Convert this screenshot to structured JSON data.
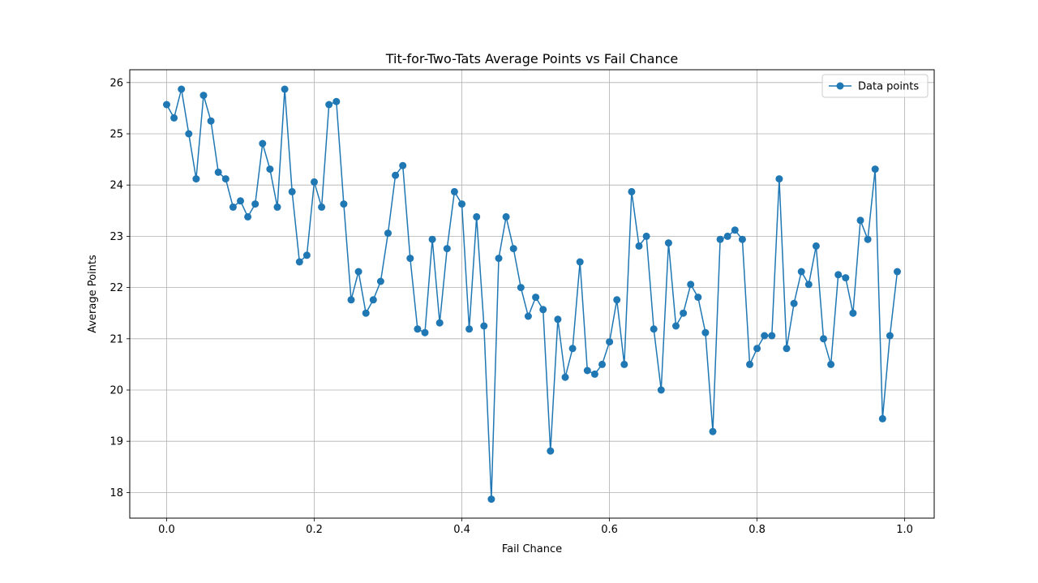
{
  "chart_data": {
    "type": "line",
    "title": "Tit-for-Two-Tats Average Points vs Fail Chance",
    "xlabel": "Fail Chance",
    "ylabel": "Average Points",
    "xlim": [
      -0.05,
      1.04
    ],
    "ylim": [
      17.5,
      26.25
    ],
    "xticks": [
      0.0,
      0.2,
      0.4,
      0.6,
      0.8,
      1.0
    ],
    "xtick_labels": [
      "0.0",
      "0.2",
      "0.4",
      "0.6",
      "0.8",
      "1.0"
    ],
    "yticks": [
      18,
      19,
      20,
      21,
      22,
      23,
      24,
      25,
      26
    ],
    "ytick_labels": [
      "18",
      "19",
      "20",
      "21",
      "22",
      "23",
      "24",
      "25",
      "26"
    ],
    "grid": true,
    "legend_position": "top-right",
    "series": [
      {
        "name": "Data points",
        "color": "#1f77b4",
        "marker": "circle",
        "x": [
          0.0,
          0.01,
          0.02,
          0.03,
          0.04,
          0.05,
          0.06,
          0.07,
          0.08,
          0.09,
          0.1,
          0.11,
          0.12,
          0.13,
          0.14,
          0.15,
          0.16,
          0.17,
          0.18,
          0.19,
          0.2,
          0.21,
          0.22,
          0.23,
          0.24,
          0.25,
          0.26,
          0.27,
          0.28,
          0.29,
          0.3,
          0.31,
          0.32,
          0.33,
          0.34,
          0.35,
          0.36,
          0.37,
          0.38,
          0.39,
          0.4,
          0.41,
          0.42,
          0.43,
          0.44,
          0.45,
          0.46,
          0.47,
          0.48,
          0.49,
          0.5,
          0.51,
          0.52,
          0.53,
          0.54,
          0.55,
          0.56,
          0.57,
          0.58,
          0.59,
          0.6,
          0.61,
          0.62,
          0.63,
          0.64,
          0.65,
          0.66,
          0.67,
          0.68,
          0.69,
          0.7,
          0.71,
          0.72,
          0.73,
          0.74,
          0.75,
          0.76,
          0.77,
          0.78,
          0.79,
          0.8,
          0.81,
          0.82,
          0.83,
          0.84,
          0.85,
          0.86,
          0.87,
          0.88,
          0.89,
          0.9,
          0.91,
          0.92,
          0.93,
          0.94,
          0.95,
          0.96,
          0.97,
          0.98,
          0.99
        ],
        "y": [
          25.57,
          25.31,
          25.87,
          25.0,
          24.12,
          25.75,
          25.25,
          24.25,
          24.12,
          23.57,
          23.69,
          23.38,
          23.63,
          24.81,
          24.31,
          23.57,
          25.87,
          23.87,
          22.5,
          22.63,
          24.06,
          23.57,
          25.57,
          25.63,
          23.63,
          21.76,
          22.31,
          21.5,
          21.76,
          22.12,
          23.06,
          24.19,
          24.38,
          22.57,
          21.19,
          21.12,
          22.94,
          21.31,
          22.76,
          23.87,
          23.63,
          21.19,
          23.38,
          21.25,
          17.87,
          22.57,
          23.38,
          22.76,
          22.0,
          21.44,
          21.81,
          21.57,
          18.81,
          21.38,
          20.25,
          20.81,
          22.5,
          20.38,
          20.31,
          20.5,
          20.94,
          21.76,
          20.5,
          23.87,
          22.81,
          23.0,
          21.19,
          20.0,
          22.87,
          21.25,
          21.5,
          22.06,
          21.81,
          21.12,
          19.19,
          22.94,
          23.0,
          23.12,
          22.94,
          20.5,
          20.81,
          21.06,
          21.06,
          24.12,
          20.81,
          21.69,
          22.31,
          22.06,
          22.81,
          21.0,
          20.5,
          22.25,
          22.19,
          21.5,
          23.31,
          22.94,
          24.31,
          19.44,
          21.06,
          22.31
        ]
      }
    ]
  }
}
